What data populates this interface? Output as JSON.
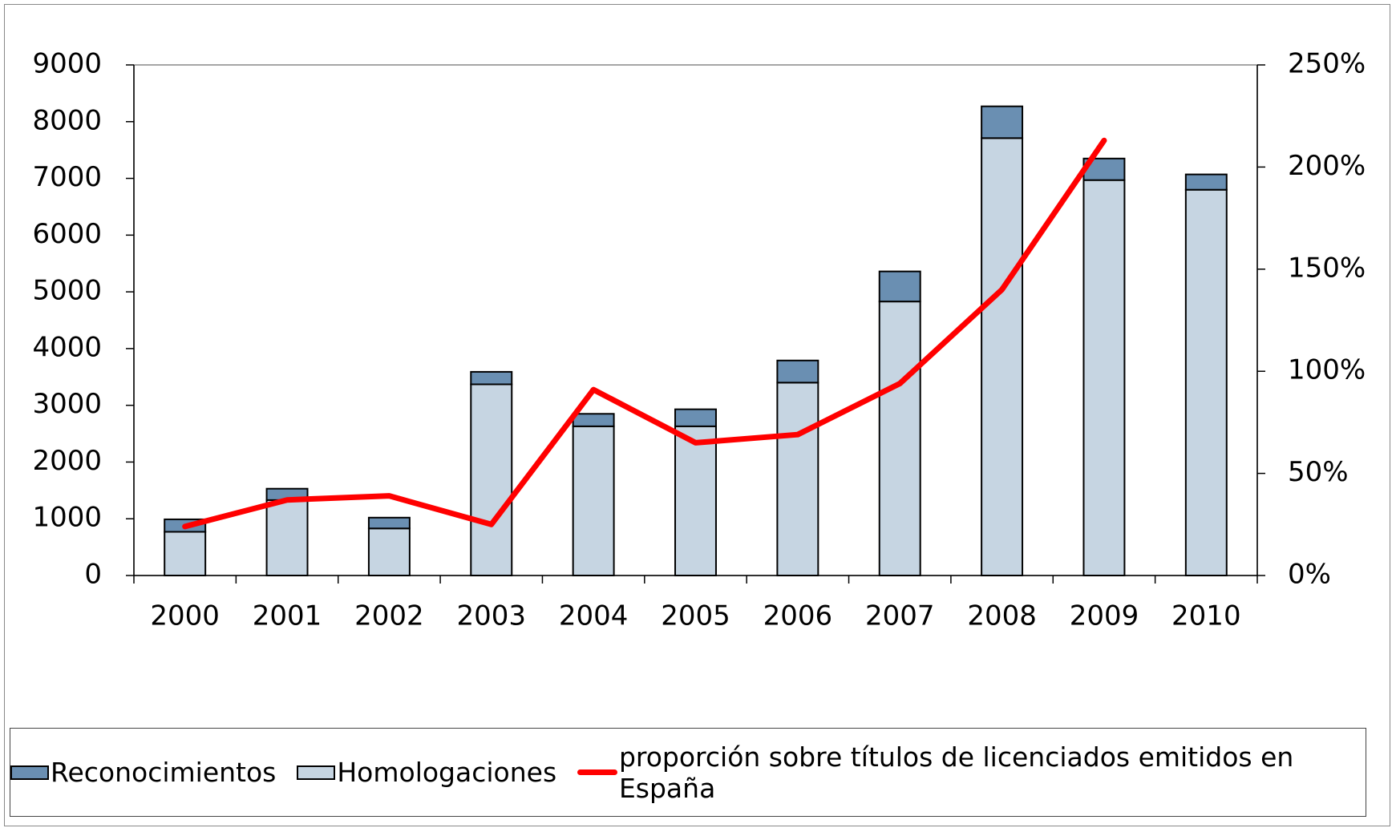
{
  "chart_data": {
    "type": "bar",
    "categories": [
      "2000",
      "2001",
      "2002",
      "2003",
      "2004",
      "2005",
      "2006",
      "2007",
      "2008",
      "2009",
      "2010"
    ],
    "series": [
      {
        "name": "Reconocimientos",
        "type": "bar",
        "color": "#6a8fb2",
        "values": [
          220,
          200,
          190,
          220,
          220,
          300,
          390,
          530,
          560,
          380,
          270
        ]
      },
      {
        "name": "Homologaciones",
        "type": "bar",
        "color": "#c6d5e2",
        "values": [
          770,
          1330,
          830,
          3370,
          2630,
          2630,
          3400,
          4830,
          7710,
          6970,
          6800
        ]
      },
      {
        "name": "proporción sobre títulos de licenciados emitidos en España",
        "type": "line",
        "axis": "y2",
        "color": "#ff0000",
        "values": [
          24,
          37,
          39,
          25,
          91,
          65,
          69,
          94,
          140,
          213,
          null
        ]
      }
    ],
    "stacked": true,
    "ylim": [
      0,
      9000
    ],
    "yticks": [
      0,
      1000,
      2000,
      3000,
      4000,
      5000,
      6000,
      7000,
      8000,
      9000
    ],
    "y2lim": [
      0,
      250
    ],
    "y2ticks": [
      {
        "value": 0,
        "label": "0%"
      },
      {
        "value": 50,
        "label": "50%"
      },
      {
        "value": 100,
        "label": "100%"
      },
      {
        "value": 150,
        "label": "150%"
      },
      {
        "value": 200,
        "label": "200%"
      },
      {
        "value": 250,
        "label": "250%"
      }
    ],
    "grid": false,
    "legend": "bottom"
  }
}
